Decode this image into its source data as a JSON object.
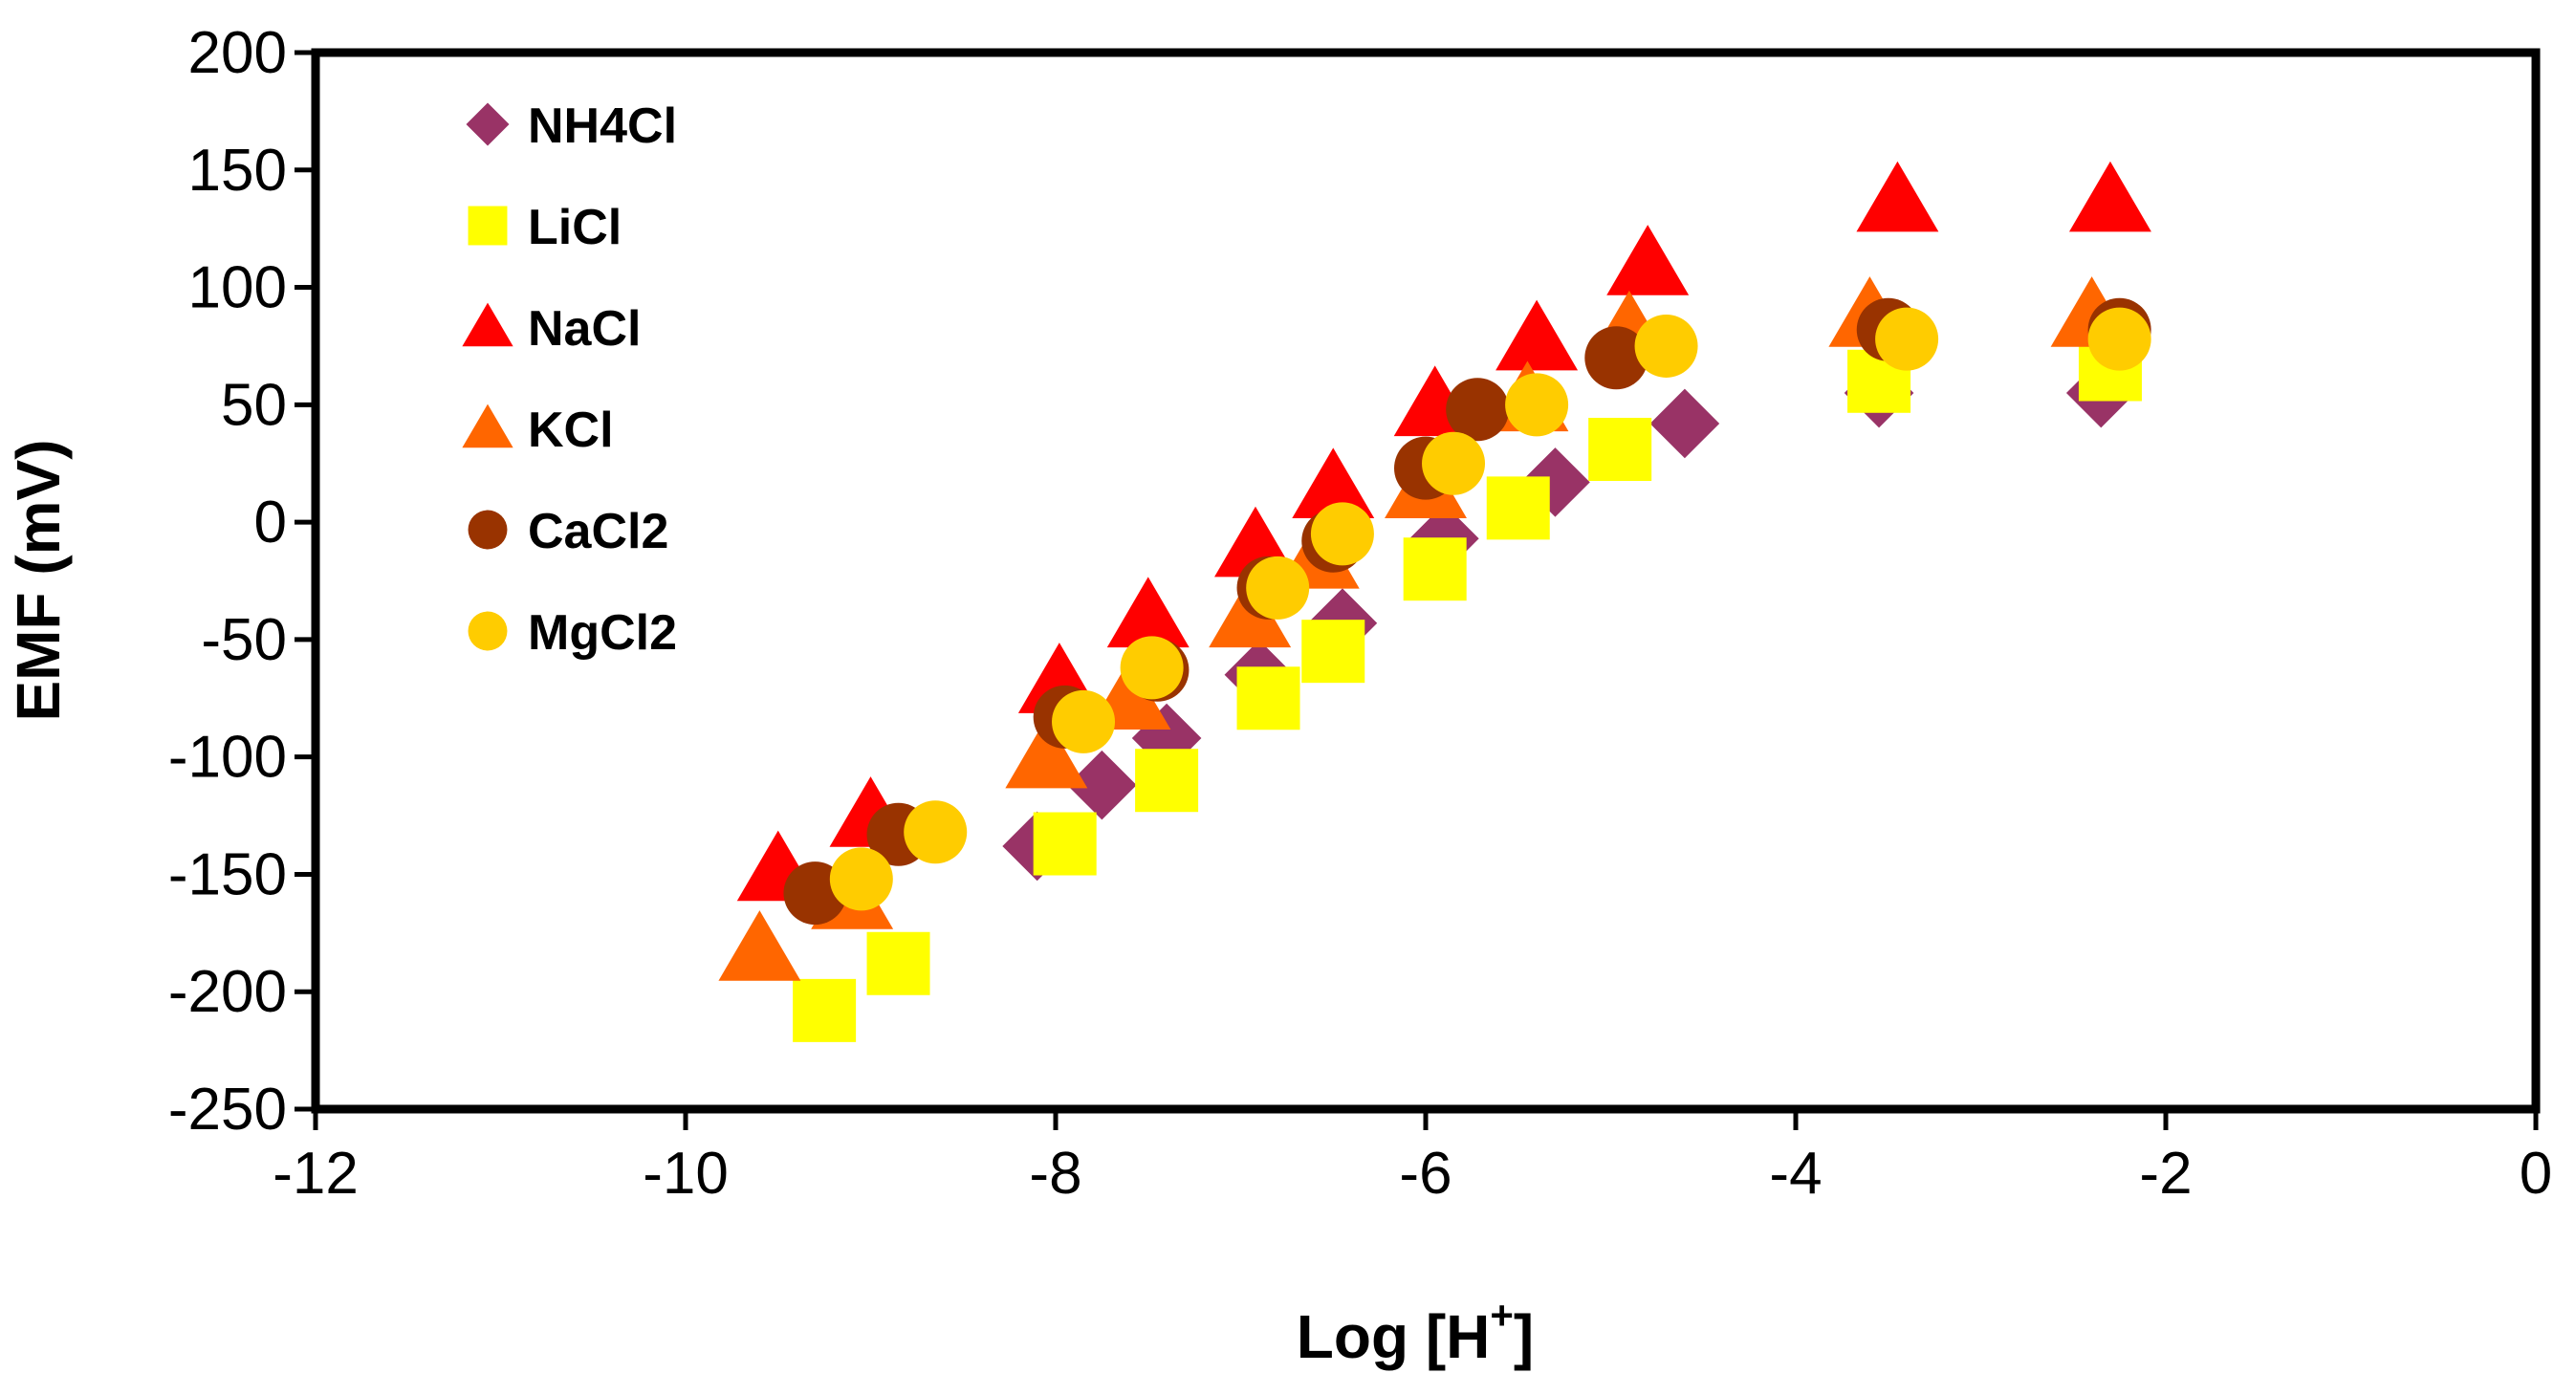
{
  "chart_data": {
    "type": "scatter",
    "title": "",
    "xlabel": "Log [H+]",
    "xlabel_main": "Log [H",
    "xlabel_sup": "+",
    "xlabel_close": "]",
    "ylabel": "EMF (mV)",
    "xlim": [
      -12,
      0
    ],
    "ylim": [
      -250,
      200
    ],
    "xticks": [
      -12,
      -10,
      -8,
      -6,
      -4,
      -2,
      0
    ],
    "yticks": [
      200,
      150,
      100,
      50,
      0,
      -50,
      -100,
      -150,
      -200,
      -250
    ],
    "grid": false,
    "legend_position": "top-left",
    "series": [
      {
        "name": "NH4Cl",
        "marker": "diamond",
        "color": "#993366",
        "x": [
          -8.1,
          -7.75,
          -7.4,
          -6.9,
          -6.45,
          -5.9,
          -5.3,
          -4.6,
          -3.55,
          -2.35
        ],
        "y": [
          -138,
          -112,
          -92,
          -65,
          -43,
          -7,
          17,
          42,
          55,
          55
        ]
      },
      {
        "name": "LiCl",
        "marker": "square",
        "color": "#ffff00",
        "x": [
          -9.25,
          -8.85,
          -7.95,
          -7.4,
          -6.85,
          -6.5,
          -5.95,
          -5.5,
          -4.95,
          -3.55,
          -2.3
        ],
        "y": [
          -208,
          -188,
          -137,
          -110,
          -75,
          -55,
          -20,
          6,
          31,
          60,
          65
        ]
      },
      {
        "name": "NaCl",
        "marker": "triangle",
        "color": "#ff0000",
        "x": [
          -9.5,
          -9.0,
          -7.98,
          -7.5,
          -6.92,
          -6.5,
          -5.95,
          -5.4,
          -4.8,
          -3.45,
          -2.3
        ],
        "y": [
          -148,
          -125,
          -68,
          -40,
          -10,
          15,
          50,
          78,
          110,
          137,
          137
        ]
      },
      {
        "name": "KCl",
        "marker": "triangle",
        "color": "#ff6600",
        "x": [
          -9.6,
          -9.1,
          -8.05,
          -7.6,
          -6.95,
          -6.58,
          -6.0,
          -5.45,
          -4.9,
          -3.6,
          -2.4
        ],
        "y": [
          -182,
          -160,
          -100,
          -75,
          -40,
          -15,
          15,
          52,
          82,
          88,
          88
        ]
      },
      {
        "name": "CaCl2",
        "marker": "circle",
        "color": "#993300",
        "x": [
          -9.3,
          -8.85,
          -7.95,
          -7.45,
          -6.85,
          -6.5,
          -6.0,
          -5.72,
          -4.97,
          -3.5,
          -2.25
        ],
        "y": [
          -158,
          -133,
          -83,
          -63,
          -28,
          -8,
          23,
          48,
          70,
          82,
          82
        ]
      },
      {
        "name": "MgCl2",
        "marker": "circle",
        "color": "#ffcc00",
        "x": [
          -9.05,
          -8.65,
          -7.85,
          -7.48,
          -6.8,
          -6.45,
          -5.85,
          -5.4,
          -4.7,
          -3.4,
          -2.25
        ],
        "y": [
          -152,
          -132,
          -85,
          -62,
          -28,
          -5,
          25,
          50,
          75,
          78,
          78
        ]
      }
    ]
  }
}
